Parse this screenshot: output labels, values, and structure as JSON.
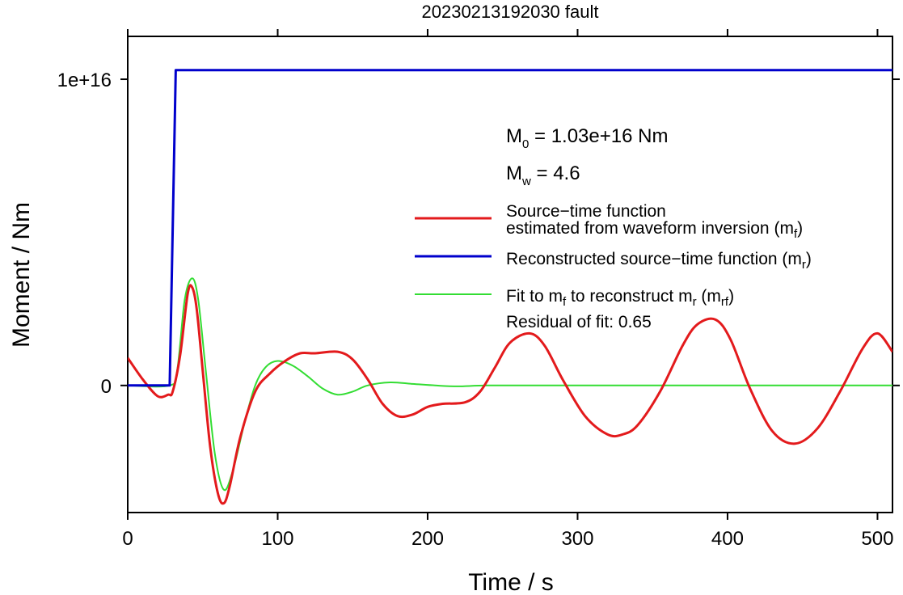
{
  "chart_data": {
    "type": "line",
    "title": "20230213192030 fault",
    "xlabel": "Time / s",
    "ylabel": "Moment / Nm",
    "xlim": [
      0,
      510
    ],
    "ylim": [
      -4150000000000000.0,
      1.14e+16
    ],
    "xticks": [
      0,
      100,
      200,
      300,
      400,
      500
    ],
    "xtick_labels": [
      "0",
      "100",
      "200",
      "300",
      "400",
      "500"
    ],
    "yticks": [
      0,
      1e+16
    ],
    "ytick_labels": [
      "0",
      "1e+16"
    ],
    "grid": false,
    "legend_position": "right",
    "annotations": {
      "m0_symbol": "M",
      "m0_sub": "0",
      "m0_value": " = 1.03e+16 Nm",
      "mw_symbol": "M",
      "mw_sub": "w",
      "mw_value": " = 4.6",
      "residual": "Residual of fit: 0.65"
    },
    "legend": [
      {
        "key": "mf",
        "color": "#e31a1c",
        "line1": "Source−time function",
        "line2_main": "estimated from waveform inversion (m",
        "line2_sub": "f",
        "line2_end": ")"
      },
      {
        "key": "mr",
        "color": "#0000cc",
        "line1_main": "Reconstructed source−time function (m",
        "line1_sub": "r",
        "line1_end": ")"
      },
      {
        "key": "mrf",
        "color": "#33dd33",
        "p1": "Fit to m",
        "p1_sub": "f",
        "p2": " to reconstruct m",
        "p2_sub": "r",
        "p3": " (m",
        "p3_sub": "rf",
        "p4": ")"
      }
    ],
    "series": [
      {
        "key": "mf",
        "color": "#e31a1c",
        "x": [
          0,
          10,
          20,
          27,
          30,
          35,
          40,
          43,
          46,
          50,
          55,
          60,
          64,
          68,
          75,
          85,
          95,
          105,
          115,
          125,
          140,
          150,
          160,
          170,
          180,
          190,
          200,
          210,
          225,
          235,
          245,
          255,
          268,
          278,
          290,
          305,
          320,
          330,
          340,
          355,
          370,
          380,
          392,
          402,
          415,
          430,
          445,
          460,
          475,
          490,
          500,
          510
        ],
        "y": [
          900000000000000.0,
          200000000000000.0,
          -350000000000000.0,
          -300000000000000.0,
          -200000000000000.0,
          1000000000000000.0,
          3000000000000000.0,
          3200000000000000.0,
          2500000000000000.0,
          500000000000000.0,
          -2000000000000000.0,
          -3500000000000000.0,
          -3850000000000000.0,
          -3300000000000000.0,
          -1700000000000000.0,
          -200000000000000.0,
          400000000000000.0,
          800000000000000.0,
          1050000000000000.0,
          1050000000000000.0,
          1100000000000000.0,
          850000000000000.0,
          200000000000000.0,
          -600000000000000.0,
          -1000000000000000.0,
          -950000000000000.0,
          -700000000000000.0,
          -600000000000000.0,
          -550000000000000.0,
          -200000000000000.0,
          600000000000000.0,
          1400000000000000.0,
          1700000000000000.0,
          1300000000000000.0,
          200000000000000.0,
          -1000000000000000.0,
          -1600000000000000.0,
          -1600000000000000.0,
          -1300000000000000.0,
          -200000000000000.0,
          1300000000000000.0,
          2000000000000000.0,
          2150000000000000.0,
          1500000000000000.0,
          -100000000000000.0,
          -1500000000000000.0,
          -1900000000000000.0,
          -1400000000000000.0,
          -200000000000000.0,
          1200000000000000.0,
          1700000000000000.0,
          1100000000000000.0
        ]
      },
      {
        "key": "mr",
        "color": "#0000cc",
        "x": [
          0,
          28,
          32,
          510
        ],
        "y": [
          0,
          0,
          1.03e+16,
          1.03e+16
        ]
      },
      {
        "key": "mrf",
        "color": "#33dd33",
        "x": [
          0,
          28,
          33,
          38,
          43,
          47,
          52,
          58,
          64,
          70,
          78,
          85,
          92,
          100,
          110,
          120,
          130,
          140,
          150,
          160,
          175,
          190,
          205,
          220,
          240,
          280,
          350,
          510
        ],
        "y": [
          0,
          0,
          500000000000000.0,
          2800000000000000.0,
          3500000000000000.0,
          2800000000000000.0,
          500000000000000.0,
          -2200000000000000.0,
          -3400000000000000.0,
          -2800000000000000.0,
          -1200000000000000.0,
          0.0,
          600000000000000.0,
          800000000000000.0,
          650000000000000.0,
          300000000000000.0,
          -100000000000000.0,
          -300000000000000.0,
          -200000000000000.0,
          0.0,
          100000000000000.0,
          50000000000000.0,
          0.0,
          -30000000000000.0,
          0.0,
          0.0,
          0.0,
          0.0
        ]
      }
    ]
  }
}
